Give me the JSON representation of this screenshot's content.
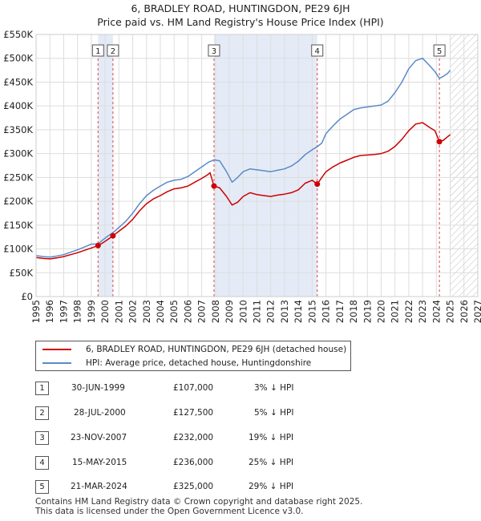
{
  "title_line1": "6, BRADLEY ROAD, HUNTINGDON, PE29 6JH",
  "title_line2": "Price paid vs. HM Land Registry's House Price Index (HPI)",
  "chart_data": {
    "type": "line",
    "x_range": [
      1995,
      2027
    ],
    "ylim": [
      0,
      550000
    ],
    "y_ticks": [
      0,
      50000,
      100000,
      150000,
      200000,
      250000,
      300000,
      350000,
      400000,
      450000,
      500000,
      550000
    ],
    "y_tick_labels": [
      "£0",
      "£50K",
      "£100K",
      "£150K",
      "£200K",
      "£250K",
      "£300K",
      "£350K",
      "£400K",
      "£450K",
      "£500K",
      "£550K"
    ],
    "x_ticks": [
      1995,
      1996,
      1997,
      1998,
      1999,
      2000,
      2001,
      2002,
      2003,
      2004,
      2005,
      2006,
      2007,
      2008,
      2009,
      2010,
      2011,
      2012,
      2013,
      2014,
      2015,
      2016,
      2017,
      2018,
      2019,
      2020,
      2021,
      2022,
      2023,
      2024,
      2025,
      2026,
      2027
    ],
    "forecast_start": 2025.0,
    "grid": true,
    "series": [
      {
        "name": "6, BRADLEY ROAD, HUNTINGDON, PE29 6JH (detached house)",
        "color": "#cc0000",
        "points": [
          [
            1995.0,
            82000
          ],
          [
            1995.5,
            80000
          ],
          [
            1996.0,
            79000
          ],
          [
            1996.5,
            81000
          ],
          [
            1997.0,
            84000
          ],
          [
            1997.5,
            88000
          ],
          [
            1998.0,
            92000
          ],
          [
            1998.5,
            97000
          ],
          [
            1999.0,
            102000
          ],
          [
            1999.49,
            107000
          ],
          [
            1999.8,
            112000
          ],
          [
            2000.2,
            120000
          ],
          [
            2000.57,
            127500
          ],
          [
            2001.0,
            137000
          ],
          [
            2001.5,
            148000
          ],
          [
            2002.0,
            162000
          ],
          [
            2002.5,
            180000
          ],
          [
            2003.0,
            195000
          ],
          [
            2003.5,
            205000
          ],
          [
            2004.0,
            212000
          ],
          [
            2004.5,
            220000
          ],
          [
            2005.0,
            226000
          ],
          [
            2005.5,
            228000
          ],
          [
            2006.0,
            232000
          ],
          [
            2006.5,
            240000
          ],
          [
            2007.0,
            248000
          ],
          [
            2007.4,
            255000
          ],
          [
            2007.6,
            260000
          ],
          [
            2007.89,
            232000
          ],
          [
            2008.3,
            228000
          ],
          [
            2008.8,
            210000
          ],
          [
            2009.2,
            192000
          ],
          [
            2009.6,
            198000
          ],
          [
            2010.0,
            210000
          ],
          [
            2010.5,
            218000
          ],
          [
            2011.0,
            214000
          ],
          [
            2011.5,
            212000
          ],
          [
            2012.0,
            210000
          ],
          [
            2012.5,
            213000
          ],
          [
            2013.0,
            215000
          ],
          [
            2013.5,
            218000
          ],
          [
            2014.0,
            224000
          ],
          [
            2014.5,
            238000
          ],
          [
            2015.0,
            244000
          ],
          [
            2015.37,
            236000
          ],
          [
            2015.7,
            250000
          ],
          [
            2016.0,
            262000
          ],
          [
            2016.5,
            272000
          ],
          [
            2017.0,
            280000
          ],
          [
            2017.5,
            286000
          ],
          [
            2018.0,
            292000
          ],
          [
            2018.5,
            296000
          ],
          [
            2019.0,
            297000
          ],
          [
            2019.5,
            298000
          ],
          [
            2020.0,
            300000
          ],
          [
            2020.5,
            305000
          ],
          [
            2021.0,
            315000
          ],
          [
            2021.5,
            330000
          ],
          [
            2022.0,
            348000
          ],
          [
            2022.5,
            362000
          ],
          [
            2023.0,
            365000
          ],
          [
            2023.5,
            355000
          ],
          [
            2023.9,
            348000
          ],
          [
            2024.22,
            325000
          ],
          [
            2024.5,
            328000
          ],
          [
            2024.8,
            335000
          ],
          [
            2025.0,
            340000
          ]
        ]
      },
      {
        "name": "HPI: Average price, detached house, Huntingdonshire",
        "color": "#5b8ac6",
        "points": [
          [
            1995.0,
            86000
          ],
          [
            1995.5,
            84000
          ],
          [
            1996.0,
            83000
          ],
          [
            1996.5,
            85000
          ],
          [
            1997.0,
            88000
          ],
          [
            1997.5,
            93000
          ],
          [
            1998.0,
            98000
          ],
          [
            1998.5,
            104000
          ],
          [
            1999.0,
            110000
          ],
          [
            1999.49,
            110300
          ],
          [
            1999.8,
            118000
          ],
          [
            2000.2,
            127000
          ],
          [
            2000.57,
            134000
          ],
          [
            2001.0,
            145000
          ],
          [
            2001.5,
            158000
          ],
          [
            2002.0,
            175000
          ],
          [
            2002.5,
            195000
          ],
          [
            2003.0,
            212000
          ],
          [
            2003.5,
            223000
          ],
          [
            2004.0,
            232000
          ],
          [
            2004.5,
            240000
          ],
          [
            2005.0,
            244000
          ],
          [
            2005.5,
            246000
          ],
          [
            2006.0,
            252000
          ],
          [
            2006.5,
            262000
          ],
          [
            2007.0,
            272000
          ],
          [
            2007.5,
            282000
          ],
          [
            2007.89,
            287000
          ],
          [
            2008.3,
            285000
          ],
          [
            2008.8,
            262000
          ],
          [
            2009.2,
            240000
          ],
          [
            2009.6,
            250000
          ],
          [
            2010.0,
            262000
          ],
          [
            2010.5,
            268000
          ],
          [
            2011.0,
            266000
          ],
          [
            2011.5,
            264000
          ],
          [
            2012.0,
            262000
          ],
          [
            2012.5,
            265000
          ],
          [
            2013.0,
            268000
          ],
          [
            2013.5,
            274000
          ],
          [
            2014.0,
            284000
          ],
          [
            2014.5,
            298000
          ],
          [
            2015.0,
            308000
          ],
          [
            2015.37,
            314700
          ],
          [
            2015.7,
            322000
          ],
          [
            2016.0,
            342000
          ],
          [
            2016.5,
            358000
          ],
          [
            2017.0,
            372000
          ],
          [
            2017.5,
            382000
          ],
          [
            2018.0,
            392000
          ],
          [
            2018.5,
            396000
          ],
          [
            2019.0,
            398000
          ],
          [
            2019.5,
            400000
          ],
          [
            2020.0,
            402000
          ],
          [
            2020.5,
            410000
          ],
          [
            2021.0,
            428000
          ],
          [
            2021.5,
            450000
          ],
          [
            2022.0,
            478000
          ],
          [
            2022.5,
            495000
          ],
          [
            2023.0,
            500000
          ],
          [
            2023.5,
            485000
          ],
          [
            2023.9,
            472000
          ],
          [
            2024.22,
            458000
          ],
          [
            2024.5,
            462000
          ],
          [
            2024.8,
            468000
          ],
          [
            2025.0,
            475000
          ]
        ]
      }
    ],
    "sales_markers": [
      {
        "label": "1",
        "x": 1999.49,
        "y": 107000
      },
      {
        "label": "2",
        "x": 2000.57,
        "y": 127500
      },
      {
        "label": "3",
        "x": 2007.89,
        "y": 232000
      },
      {
        "label": "4",
        "x": 2015.37,
        "y": 236000
      },
      {
        "label": "5",
        "x": 2024.22,
        "y": 325000
      }
    ]
  },
  "legend": {
    "property_label": "6, BRADLEY ROAD, HUNTINGDON, PE29 6JH (detached house)",
    "hpi_label": "HPI: Average price, detached house, Huntingdonshire",
    "property_color": "#cc0000",
    "hpi_color": "#5b8ac6"
  },
  "sales_table": [
    {
      "num": "1",
      "date": "30-JUN-1999",
      "price": "£107,000",
      "hpi": "3% ↓ HPI"
    },
    {
      "num": "2",
      "date": "28-JUL-2000",
      "price": "£127,500",
      "hpi": "5% ↓ HPI"
    },
    {
      "num": "3",
      "date": "23-NOV-2007",
      "price": "£232,000",
      "hpi": "19% ↓ HPI"
    },
    {
      "num": "4",
      "date": "15-MAY-2015",
      "price": "£236,000",
      "hpi": "25% ↓ HPI"
    },
    {
      "num": "5",
      "date": "21-MAR-2024",
      "price": "£325,000",
      "hpi": "29% ↓ HPI"
    }
  ],
  "footer_line1": "Contains HM Land Registry data © Crown copyright and database right 2025.",
  "footer_line2": "This data is licensed under the Open Government Licence v3.0."
}
